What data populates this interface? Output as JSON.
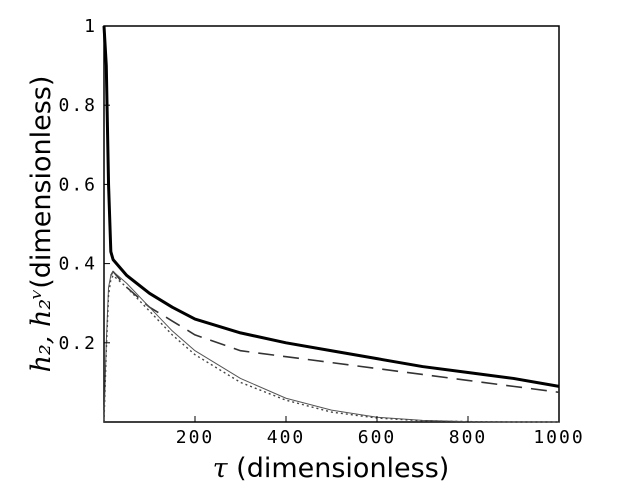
{
  "chart_data": {
    "type": "line",
    "xlabel_symbol": "τ",
    "xlabel_text": " (dimensionless)",
    "ylabel_symbols": "h₂, h₂ᵛ",
    "ylabel_text": "(dimensionless)",
    "xlim": [
      0,
      1000
    ],
    "ylim": [
      0,
      1
    ],
    "x_ticks": [
      "200",
      "400",
      "600",
      "800",
      "1000"
    ],
    "y_ticks": [
      "0.2",
      "0.4",
      "0.6",
      "0.8",
      "1"
    ],
    "grid": false,
    "series": [
      {
        "style": "solid-thick",
        "color": "#000000",
        "x": [
          0,
          5,
          10,
          15,
          20,
          50,
          100,
          150,
          200,
          300,
          400,
          500,
          600,
          700,
          800,
          900,
          1000
        ],
        "y": [
          1.0,
          0.9,
          0.6,
          0.43,
          0.41,
          0.37,
          0.325,
          0.29,
          0.26,
          0.225,
          0.2,
          0.18,
          0.16,
          0.14,
          0.125,
          0.11,
          0.09
        ]
      },
      {
        "style": "dashed",
        "color": "#333333",
        "x": [
          15,
          20,
          50,
          100,
          150,
          200,
          300,
          400,
          500,
          600,
          700,
          800,
          900,
          1000
        ],
        "y": [
          0.37,
          0.38,
          0.34,
          0.29,
          0.255,
          0.22,
          0.18,
          0.165,
          0.15,
          0.135,
          0.12,
          0.105,
          0.09,
          0.075
        ]
      },
      {
        "style": "solid-thin",
        "color": "#555555",
        "x": [
          0,
          5,
          10,
          15,
          20,
          50,
          100,
          150,
          200,
          300,
          400,
          500,
          600,
          700,
          800,
          900,
          1000
        ],
        "y": [
          0.0,
          0.2,
          0.34,
          0.37,
          0.38,
          0.35,
          0.29,
          0.23,
          0.18,
          0.11,
          0.06,
          0.03,
          0.012,
          0.004,
          0.001,
          0.0,
          0.0
        ]
      },
      {
        "style": "dotted",
        "color": "#444444",
        "x": [
          0,
          5,
          10,
          15,
          20,
          50,
          100,
          150,
          200,
          300,
          400,
          500,
          600,
          700,
          800,
          900,
          1000
        ],
        "y": [
          0.0,
          0.18,
          0.32,
          0.36,
          0.37,
          0.34,
          0.28,
          0.22,
          0.17,
          0.1,
          0.055,
          0.025,
          0.01,
          0.003,
          0.001,
          0.0,
          0.0
        ]
      }
    ]
  }
}
